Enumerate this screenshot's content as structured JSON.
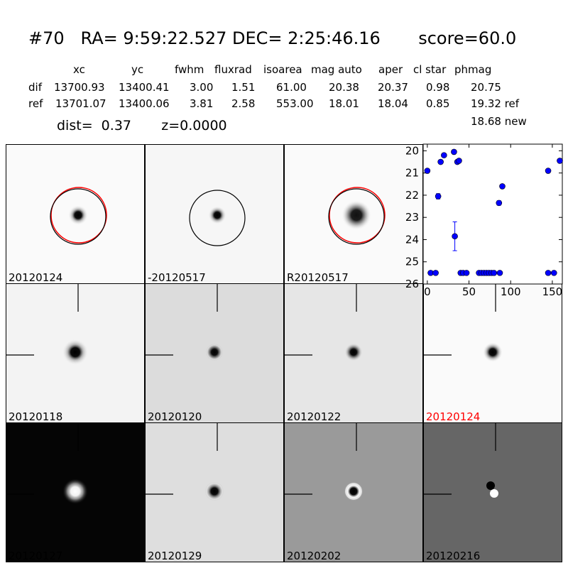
{
  "header": {
    "title": "#70   RA= 9:59:22.527 DEC= 2:25:46.16       score=60.0",
    "columns": [
      "xc",
      "yc",
      "fwhm",
      "fluxrad",
      "isoarea",
      "mag auto",
      "aper",
      "cl star",
      "phmag"
    ],
    "dif": {
      "label": "dif",
      "values": [
        "13700.93",
        "13400.41",
        "3.00",
        "1.51",
        "61.00",
        "20.38",
        "20.37",
        "0.98",
        "20.75"
      ]
    },
    "ref": {
      "label": "ref",
      "values": [
        "13701.07",
        "13400.06",
        "3.81",
        "2.58",
        "553.00",
        "18.01",
        "18.04",
        "0.85",
        "19.32 ref"
      ]
    },
    "new_phmag": "18.68 new",
    "dist_line": "dist=  0.37       z=0.0000"
  },
  "stamps": [
    {
      "label": "20120124",
      "circle": "red-black",
      "crosshair": false,
      "bg": "#fafafa",
      "core": "#000000",
      "halo": "#9a9a9a",
      "size": 1.0,
      "ring": false
    },
    {
      "label": "-20120517",
      "circle": "black",
      "crosshair": false,
      "bg": "#f6f6f6",
      "core": "#000000",
      "halo": "#8c8c8c",
      "size": 0.9,
      "ring": false
    },
    {
      "label": "R20120517",
      "circle": "red-black",
      "crosshair": false,
      "bg": "#fafafa",
      "core": "#111111",
      "halo": "#777777",
      "size": 1.5,
      "ring": false
    },
    {
      "label": "20120118",
      "crosshair": true,
      "bg": "#f3f3f3",
      "core": "#000000",
      "halo": "#999999",
      "size": 1.3,
      "ring": false
    },
    {
      "label": "20120120",
      "crosshair": true,
      "bg": "#dcdcdc",
      "core": "#000000",
      "halo": "#555555",
      "size": 0.9,
      "ring": true,
      "ringColor": "#ffffff"
    },
    {
      "label": "20120122",
      "crosshair": true,
      "bg": "#e6e6e6",
      "core": "#000000",
      "halo": "#666666",
      "size": 0.9,
      "ring": false
    },
    {
      "label": "20120124",
      "crosshair": true,
      "bg": "#fafafa",
      "core": "#000000",
      "halo": "#888888",
      "size": 1.0,
      "ring": false,
      "labelColor": "#ff0000"
    },
    {
      "label": "20120127",
      "crosshair": true,
      "bg": "#050505",
      "core": "#ffffff",
      "halo": "#c8c8c8",
      "size": 1.3,
      "ring": false
    },
    {
      "label": "20120129",
      "crosshair": true,
      "bg": "#dedede",
      "core": "#000000",
      "halo": "#777777",
      "size": 1.0,
      "ring": true,
      "ringColor": "#ffffff"
    },
    {
      "label": "20120202",
      "crosshair": true,
      "bg": "#9a9a9a",
      "core": "#000000",
      "halo": "#ffffff",
      "size": 1.0,
      "ring": true,
      "ringColor": "#ffffff"
    },
    {
      "label": "20120216",
      "crosshair": true,
      "bg": "#666666",
      "core": "#000000",
      "halo": "#ffffff",
      "size": 1.0,
      "ring": false,
      "dipole": true
    }
  ],
  "chart_data": {
    "type": "scatter",
    "title": "",
    "xlabel": "",
    "ylabel": "",
    "xlim": [
      -5,
      162
    ],
    "ylim": [
      26,
      19.7
    ],
    "y_inverted": true,
    "xticks": [
      "0",
      "50",
      "100",
      "150"
    ],
    "yticks": [
      "20",
      "21",
      "22",
      "23",
      "24",
      "25",
      "26"
    ],
    "marker_color": "#0000ff",
    "points": [
      {
        "x": 0,
        "y": 20.9
      },
      {
        "x": 4,
        "y": 25.5
      },
      {
        "x": 10,
        "y": 25.5
      },
      {
        "x": 13,
        "y": 22.05,
        "err": 0.12
      },
      {
        "x": 16,
        "y": 20.5
      },
      {
        "x": 20,
        "y": 20.2
      },
      {
        "x": 32,
        "y": 20.05
      },
      {
        "x": 33,
        "y": 23.85,
        "err": 0.65
      },
      {
        "x": 36,
        "y": 20.5
      },
      {
        "x": 38,
        "y": 20.45
      },
      {
        "x": 40,
        "y": 25.5
      },
      {
        "x": 43,
        "y": 25.5
      },
      {
        "x": 47,
        "y": 25.5
      },
      {
        "x": 62,
        "y": 25.5
      },
      {
        "x": 65,
        "y": 25.5
      },
      {
        "x": 68,
        "y": 25.5
      },
      {
        "x": 71,
        "y": 25.5
      },
      {
        "x": 74,
        "y": 25.5
      },
      {
        "x": 77,
        "y": 25.5
      },
      {
        "x": 80,
        "y": 25.5
      },
      {
        "x": 86,
        "y": 22.35,
        "err": 0.1
      },
      {
        "x": 87,
        "y": 25.5
      },
      {
        "x": 90,
        "y": 21.6
      },
      {
        "x": 145,
        "y": 20.9
      },
      {
        "x": 145,
        "y": 25.5
      },
      {
        "x": 152,
        "y": 25.5
      },
      {
        "x": 159,
        "y": 20.45
      }
    ]
  }
}
